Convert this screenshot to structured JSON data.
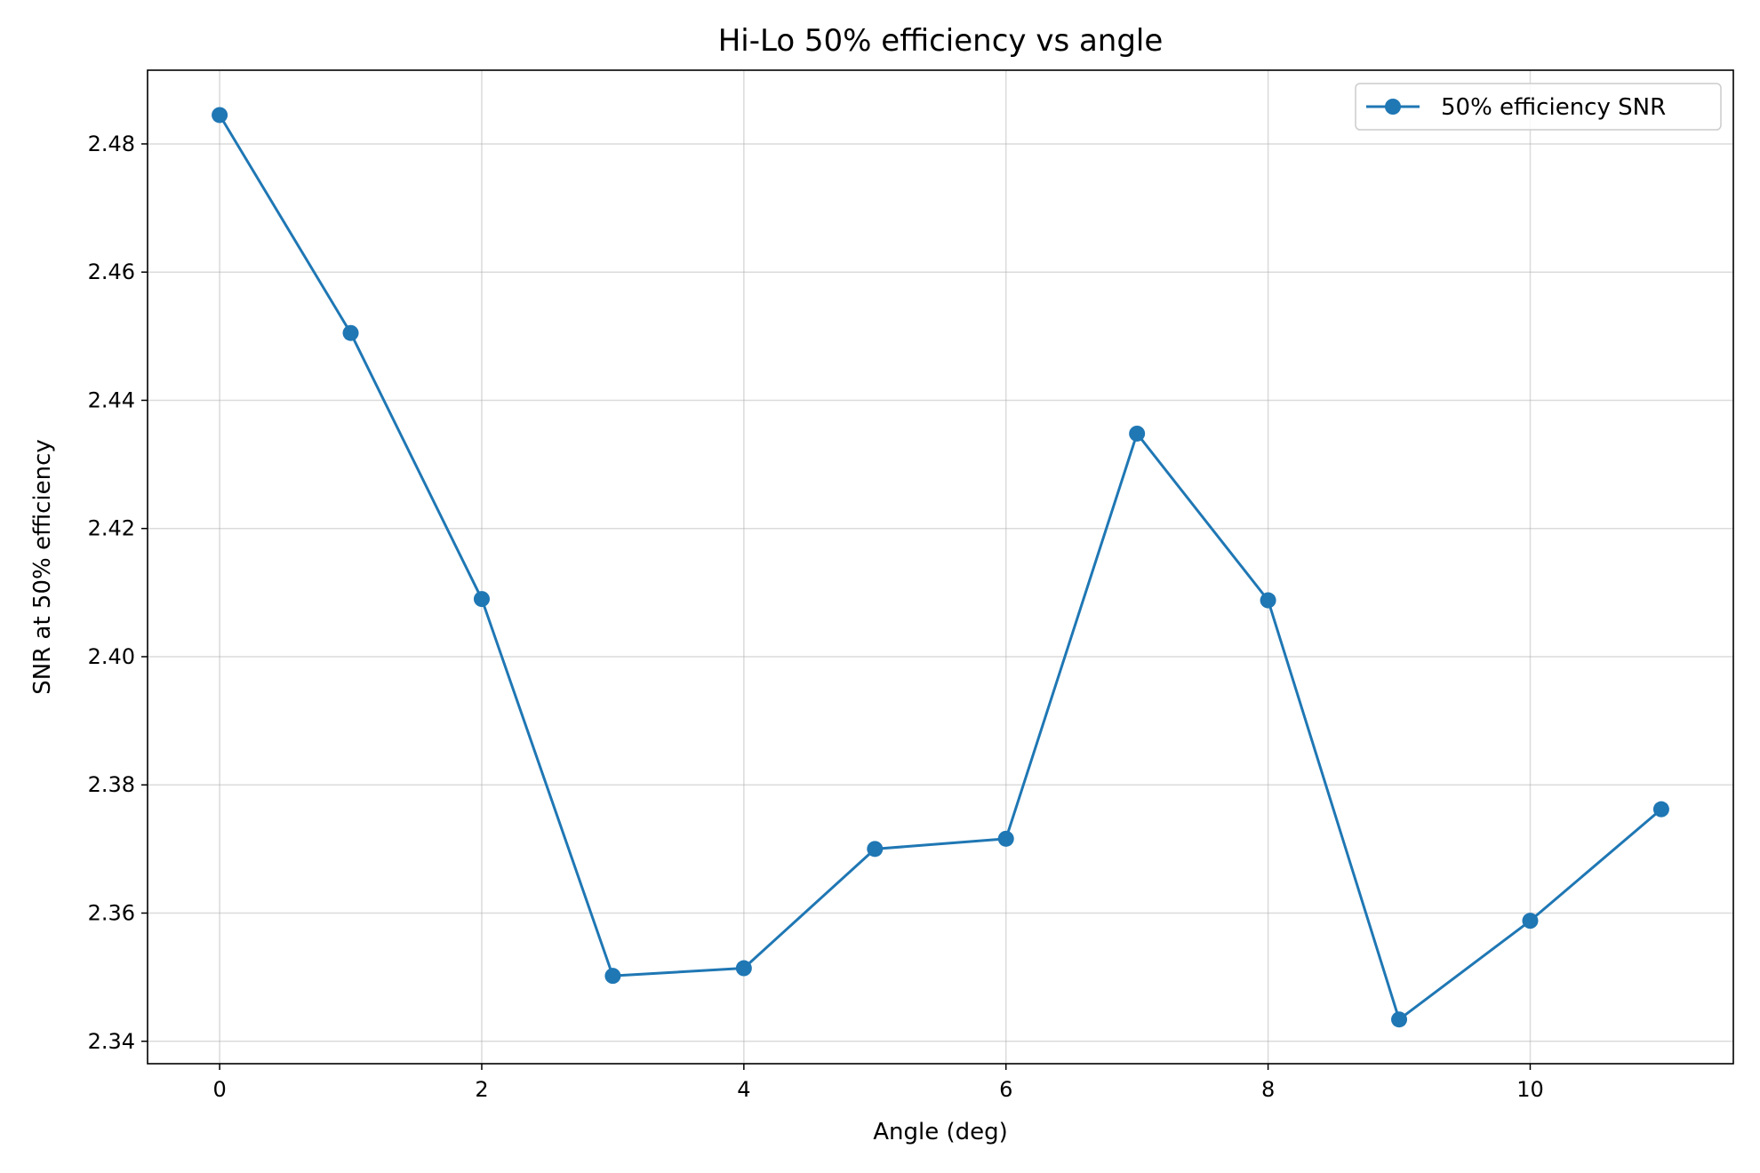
{
  "chart_data": {
    "type": "line",
    "title": "Hi-Lo 50% efficiency vs angle",
    "xlabel": "Angle (deg)",
    "ylabel": "SNR at 50% efficiency",
    "xlim": [
      -0.55,
      11.55
    ],
    "ylim": [
      2.3365,
      2.4915
    ],
    "xticks": [
      0,
      2,
      4,
      6,
      8,
      10
    ],
    "yticks": [
      2.34,
      2.36,
      2.38,
      2.4,
      2.42,
      2.44,
      2.46,
      2.48
    ],
    "ytick_labels": [
      "2.34",
      "2.36",
      "2.38",
      "2.40",
      "2.42",
      "2.44",
      "2.46",
      "2.48"
    ],
    "grid": true,
    "legend_position": "top-right",
    "series": [
      {
        "name": "50% efficiency SNR",
        "color": "#1f77b4",
        "marker": "circle",
        "x": [
          0,
          1,
          2,
          3,
          4,
          5,
          6,
          7,
          8,
          9,
          10,
          11
        ],
        "y": [
          2.4845,
          2.4505,
          2.409,
          2.3502,
          2.3514,
          2.37,
          2.3716,
          2.4348,
          2.4088,
          2.3434,
          2.3588,
          2.3762
        ]
      }
    ]
  }
}
